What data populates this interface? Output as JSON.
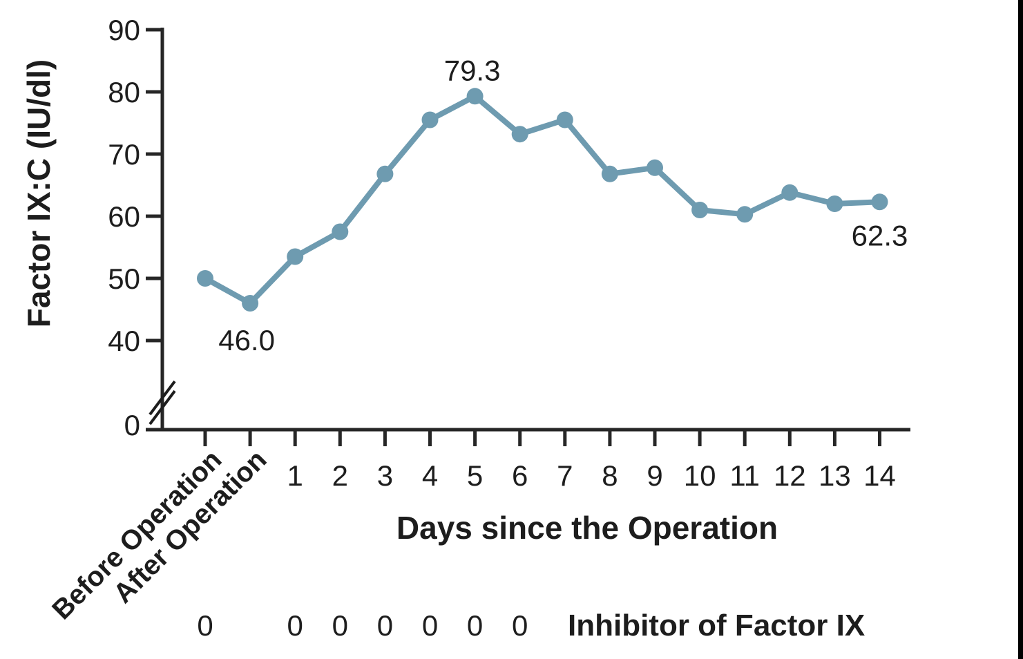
{
  "chart_data": {
    "type": "line",
    "title": "",
    "ylabel": "Factor IX:C (IU/dl)",
    "xlabel": "Days since the Operation",
    "categories": [
      "Before Operation",
      "After Operation",
      "1",
      "2",
      "3",
      "4",
      "5",
      "6",
      "7",
      "8",
      "9",
      "10",
      "11",
      "12",
      "13",
      "14"
    ],
    "values": [
      50.0,
      46.0,
      53.5,
      57.5,
      66.8,
      75.5,
      79.3,
      73.2,
      75.5,
      66.8,
      67.8,
      61.0,
      60.3,
      63.8,
      62.0,
      62.3
    ],
    "y_ticks_labeled": [
      "90",
      "80",
      "70",
      "60",
      "50",
      "40"
    ],
    "y_zero_label": "0",
    "ylim": [
      0,
      90
    ],
    "axis_break": true,
    "grid": false,
    "legend": "none",
    "line_color": "#6e9bb0",
    "axis_color": "#262626",
    "text_color": "#1d1d1d",
    "annotations": [
      {
        "category": "After Operation",
        "index": 1,
        "text": "46.0"
      },
      {
        "category": "5",
        "index": 6,
        "text": "79.3"
      },
      {
        "category": "14",
        "index": 15,
        "text": "62.3"
      }
    ],
    "inhibitor_row": {
      "label": "Inhibitor of Factor IX",
      "value": "0",
      "marked_categories": [
        "Before Operation",
        "1",
        "2",
        "3",
        "4",
        "5",
        "6"
      ],
      "indices": [
        0,
        2,
        3,
        4,
        5,
        6,
        7
      ]
    }
  }
}
